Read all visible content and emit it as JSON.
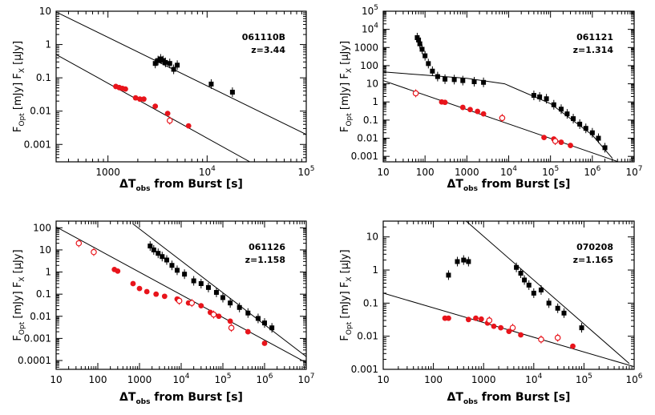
{
  "colors": {
    "xray": "#000000",
    "optical": "#e8141b",
    "axis": "#000000",
    "fit": "#000000"
  },
  "chart_data": [
    {
      "type": "scatter",
      "grb": "061110B",
      "redshift_label": "z=3.44",
      "xlabel": {
        "main": "ΔT",
        "sub": "obs",
        "rest": " from Burst [s]"
      },
      "ylabel": {
        "opt_main": "F",
        "opt_sub": "Opt",
        "opt_unit": " [mJy]",
        "x_main": "F",
        "x_sub": "X",
        "x_unit": " [μJy]"
      },
      "x_scale": "log",
      "y_scale": "log",
      "xlim": [
        300,
        100000
      ],
      "ylim": [
        0.0003,
        10
      ],
      "x_ticks": [
        {
          "v": 1000,
          "t": "1000"
        },
        {
          "v": 10000,
          "t": "10",
          "e": "4"
        },
        {
          "v": 100000,
          "t": "10",
          "e": "5"
        }
      ],
      "y_ticks": [
        {
          "v": 0.001,
          "t": "0.001"
        },
        {
          "v": 0.01,
          "t": "0.01"
        },
        {
          "v": 0.1,
          "t": "0.1"
        },
        {
          "v": 1,
          "t": "1"
        },
        {
          "v": 10,
          "t": "10"
        }
      ],
      "fit_lines": [
        {
          "points": [
            [
              300,
              9.5
            ],
            [
              100000,
              0.002
            ]
          ]
        },
        {
          "points": [
            [
              300,
              0.5
            ],
            [
              27000,
              0.0003
            ]
          ]
        }
      ],
      "series": [
        {
          "kind": "xray",
          "points": [
            [
              3000,
              0.27
            ],
            [
              3200,
              0.33
            ],
            [
              3400,
              0.37
            ],
            [
              3600,
              0.33
            ],
            [
              3800,
              0.29
            ],
            [
              4200,
              0.27
            ],
            [
              4600,
              0.18
            ],
            [
              5000,
              0.24
            ],
            [
              11000,
              0.065
            ],
            [
              18000,
              0.037
            ]
          ]
        },
        {
          "kind": "optical",
          "points": [
            [
              1200,
              0.055
            ],
            [
              1300,
              0.051
            ],
            [
              1400,
              0.048
            ],
            [
              1500,
              0.046
            ],
            [
              1900,
              0.025
            ],
            [
              2100,
              0.023
            ],
            [
              2300,
              0.023
            ],
            [
              3000,
              0.014
            ],
            [
              4000,
              0.0085
            ],
            [
              6500,
              0.0036
            ]
          ]
        },
        {
          "kind": "optical-open",
          "points": [
            [
              4200,
              0.0052
            ]
          ]
        }
      ]
    },
    {
      "type": "scatter",
      "grb": "061121",
      "redshift_label": "z=1.314",
      "xlabel": {
        "main": "ΔT",
        "sub": "obs",
        "rest": " from Burst [s]"
      },
      "ylabel": {
        "opt_main": "F",
        "opt_sub": "Opt",
        "opt_unit": " [mJy]",
        "x_main": "F",
        "x_sub": "X",
        "x_unit": " [μJy]"
      },
      "x_scale": "log",
      "y_scale": "log",
      "xlim": [
        10,
        10000000
      ],
      "ylim": [
        0.0005,
        100000
      ],
      "x_ticks": [
        {
          "v": 10,
          "t": "10"
        },
        {
          "v": 100,
          "t": "100"
        },
        {
          "v": 1000,
          "t": "1000"
        },
        {
          "v": 10000,
          "t": "10",
          "e": "4"
        },
        {
          "v": 100000,
          "t": "10",
          "e": "5"
        },
        {
          "v": 1000000,
          "t": "10",
          "e": "6"
        },
        {
          "v": 10000000,
          "t": "10",
          "e": "7"
        }
      ],
      "y_ticks": [
        {
          "v": 0.001,
          "t": "0.001"
        },
        {
          "v": 0.01,
          "t": "0.01"
        },
        {
          "v": 0.1,
          "t": "0.1"
        },
        {
          "v": 1,
          "t": "1"
        },
        {
          "v": 10,
          "t": "10"
        },
        {
          "v": 100,
          "t": "100"
        },
        {
          "v": 1000,
          "t": "1000"
        },
        {
          "v": 10000,
          "t": "10",
          "e": "4"
        },
        {
          "v": 100000,
          "t": "10",
          "e": "5"
        }
      ],
      "fit_lines": [
        {
          "points": [
            [
              10,
              45
            ],
            [
              100,
              30
            ],
            [
              1000,
              20
            ],
            [
              8000,
              10
            ],
            [
              100000,
              0.8
            ],
            [
              1000000,
              0.015
            ],
            [
              3000000,
              0.0008
            ]
          ]
        },
        {
          "points": [
            [
              10,
              15
            ],
            [
              10000000,
              0.00025
            ]
          ]
        }
      ],
      "series": [
        {
          "kind": "xray",
          "points": [
            [
              65,
              3500
            ],
            [
              70,
              2600
            ],
            [
              75,
              1600
            ],
            [
              85,
              800
            ],
            [
              100,
              350
            ],
            [
              120,
              130
            ],
            [
              150,
              50
            ],
            [
              200,
              25
            ],
            [
              300,
              18
            ],
            [
              500,
              17
            ],
            [
              800,
              15
            ],
            [
              1500,
              13
            ],
            [
              2500,
              12
            ],
            [
              40000,
              2.3
            ],
            [
              55000,
              1.9
            ],
            [
              80000,
              1.5
            ],
            [
              120000,
              0.7
            ],
            [
              180000,
              0.4
            ],
            [
              250000,
              0.22
            ],
            [
              350000,
              0.12
            ],
            [
              500000,
              0.06
            ],
            [
              700000,
              0.035
            ],
            [
              1000000,
              0.02
            ],
            [
              1400000,
              0.01
            ],
            [
              2000000,
              0.003
            ]
          ]
        },
        {
          "kind": "optical",
          "points": [
            [
              250,
              1.0
            ],
            [
              300,
              0.95
            ],
            [
              800,
              0.5
            ],
            [
              1200,
              0.38
            ],
            [
              1800,
              0.3
            ],
            [
              2500,
              0.22
            ],
            [
              70000,
              0.011
            ],
            [
              120000,
              0.009
            ],
            [
              180000,
              0.006
            ],
            [
              300000,
              0.004
            ]
          ]
        },
        {
          "kind": "optical-open",
          "points": [
            [
              60,
              3.0
            ],
            [
              7000,
              0.13
            ],
            [
              130000,
              0.007
            ]
          ]
        }
      ]
    },
    {
      "type": "scatter",
      "grb": "061126",
      "redshift_label": "z=1.158",
      "xlabel": {
        "main": "ΔT",
        "sub": "obs",
        "rest": " from Burst [s]"
      },
      "ylabel": {
        "opt_main": "F",
        "opt_sub": "Opt",
        "opt_unit": " [mJy]",
        "x_main": "F",
        "x_sub": "X",
        "x_unit": " [μJy]"
      },
      "x_scale": "log",
      "y_scale": "log",
      "xlim": [
        10,
        10000000
      ],
      "ylim": [
        4e-05,
        200
      ],
      "x_ticks": [
        {
          "v": 10,
          "t": "10"
        },
        {
          "v": 100,
          "t": "100"
        },
        {
          "v": 1000,
          "t": "1000"
        },
        {
          "v": 10000,
          "t": "10",
          "e": "4"
        },
        {
          "v": 100000,
          "t": "10",
          "e": "5"
        },
        {
          "v": 1000000,
          "t": "10",
          "e": "6"
        },
        {
          "v": 10000000,
          "t": "10",
          "e": "7"
        }
      ],
      "y_ticks": [
        {
          "v": 0.0001,
          "t": "0.0001"
        },
        {
          "v": 0.001,
          "t": "0.001"
        },
        {
          "v": 0.01,
          "t": "0.01"
        },
        {
          "v": 0.1,
          "t": "0.1"
        },
        {
          "v": 1,
          "t": "1"
        },
        {
          "v": 10,
          "t": "10"
        },
        {
          "v": 100,
          "t": "100"
        }
      ],
      "fit_lines": [
        {
          "points": [
            [
              10,
              110
            ],
            [
              10000000,
              8e-05
            ]
          ]
        },
        {
          "points": [
            [
              700,
              150
            ],
            [
              10000000,
              0.00015
            ]
          ]
        }
      ],
      "series": [
        {
          "kind": "xray",
          "points": [
            [
              1800,
              15
            ],
            [
              2200,
              10
            ],
            [
              2800,
              7
            ],
            [
              3500,
              5
            ],
            [
              4500,
              3.5
            ],
            [
              6000,
              2
            ],
            [
              8000,
              1.2
            ],
            [
              12000,
              0.8
            ],
            [
              20000,
              0.4
            ],
            [
              30000,
              0.3
            ],
            [
              45000,
              0.2
            ],
            [
              70000,
              0.12
            ],
            [
              100000,
              0.07
            ],
            [
              150000,
              0.04
            ],
            [
              250000,
              0.025
            ],
            [
              400000,
              0.014
            ],
            [
              700000,
              0.008
            ],
            [
              1000000,
              0.005
            ],
            [
              1500000,
              0.003
            ]
          ]
        },
        {
          "kind": "optical",
          "points": [
            [
              250,
              1.3
            ],
            [
              300,
              1.1
            ],
            [
              700,
              0.3
            ],
            [
              1000,
              0.18
            ],
            [
              1500,
              0.13
            ],
            [
              2500,
              0.1
            ],
            [
              4000,
              0.08
            ],
            [
              8000,
              0.06
            ],
            [
              15000,
              0.04
            ],
            [
              30000,
              0.03
            ],
            [
              50000,
              0.015
            ],
            [
              80000,
              0.01
            ],
            [
              150000,
              0.006
            ],
            [
              400000,
              0.002
            ],
            [
              1000000,
              0.0006
            ]
          ]
        },
        {
          "kind": "optical-open",
          "points": [
            [
              35,
              20
            ],
            [
              80,
              8
            ],
            [
              9000,
              0.05
            ],
            [
              18000,
              0.04
            ],
            [
              60000,
              0.012
            ],
            [
              160000,
              0.003
            ]
          ]
        }
      ]
    },
    {
      "type": "scatter",
      "grb": "070208",
      "redshift_label": "z=1.165",
      "xlabel": {
        "main": "ΔT",
        "sub": "obs",
        "rest": " from Burst [s]"
      },
      "ylabel": {
        "opt_main": "F",
        "opt_sub": "Opt",
        "opt_unit": " [mJy]",
        "x_main": "F",
        "x_sub": "X",
        "x_unit": " [μJy]"
      },
      "x_scale": "log",
      "y_scale": "log",
      "xlim": [
        10,
        1000000
      ],
      "ylim": [
        0.001,
        30
      ],
      "x_ticks": [
        {
          "v": 10,
          "t": "10"
        },
        {
          "v": 100,
          "t": "100"
        },
        {
          "v": 1000,
          "t": "1000"
        },
        {
          "v": 10000,
          "t": "10",
          "e": "4"
        },
        {
          "v": 100000,
          "t": "10",
          "e": "5"
        },
        {
          "v": 1000000,
          "t": "10",
          "e": "6"
        }
      ],
      "y_ticks": [
        {
          "v": 0.001,
          "t": "0.001"
        },
        {
          "v": 0.01,
          "t": "0.01"
        },
        {
          "v": 0.1,
          "t": "0.1"
        },
        {
          "v": 1,
          "t": "1"
        },
        {
          "v": 10,
          "t": "10"
        }
      ],
      "fit_lines": [
        {
          "points": [
            [
              450,
              30
            ],
            [
              800000,
              0.0015
            ]
          ]
        },
        {
          "points": [
            [
              10,
              0.2
            ],
            [
              1000000,
              0.0012
            ]
          ]
        }
      ],
      "series": [
        {
          "kind": "xray",
          "points": [
            [
              200,
              0.7
            ],
            [
              300,
              1.8
            ],
            [
              400,
              2.0
            ],
            [
              500,
              1.8
            ],
            [
              4500,
              1.2
            ],
            [
              5500,
              0.8
            ],
            [
              6500,
              0.5
            ],
            [
              8000,
              0.35
            ],
            [
              10000,
              0.2
            ],
            [
              14000,
              0.25
            ],
            [
              20000,
              0.1
            ],
            [
              30000,
              0.07
            ],
            [
              40000,
              0.05
            ],
            [
              90000,
              0.018
            ]
          ]
        },
        {
          "kind": "optical",
          "points": [
            [
              170,
              0.035
            ],
            [
              200,
              0.035
            ],
            [
              500,
              0.032
            ],
            [
              700,
              0.035
            ],
            [
              900,
              0.033
            ],
            [
              1200,
              0.025
            ],
            [
              1600,
              0.02
            ],
            [
              2200,
              0.018
            ],
            [
              3200,
              0.014
            ],
            [
              5500,
              0.011
            ],
            [
              60000,
              0.005
            ]
          ]
        },
        {
          "kind": "optical-open",
          "points": [
            [
              1300,
              0.03
            ],
            [
              3800,
              0.018
            ],
            [
              14000,
              0.008
            ],
            [
              30000,
              0.009
            ]
          ]
        }
      ]
    }
  ]
}
